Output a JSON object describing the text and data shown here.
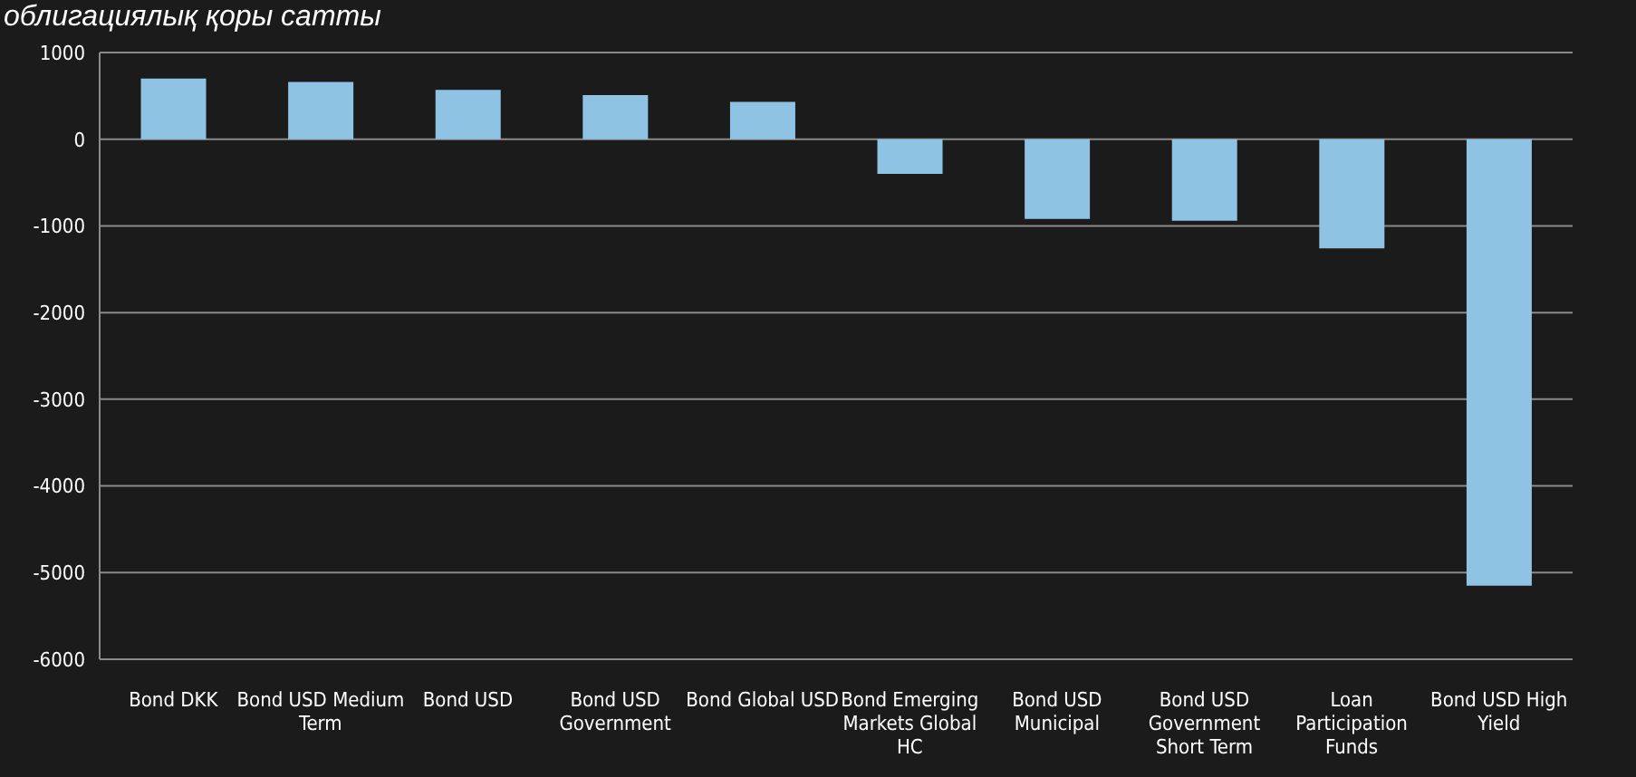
{
  "chart_data": {
    "type": "bar",
    "title": "облигациялық қоры сатты",
    "categories": [
      "Bond DKK",
      "Bond USD Medium Term",
      "Bond USD",
      "Bond USD Government",
      "Bond Global USD",
      "Bond Emerging Markets Global HC",
      "Bond USD Municipal",
      "Bond USD Government Short Term",
      "Loan Participation Funds",
      "Bond USD High Yield"
    ],
    "values": [
      700,
      660,
      570,
      510,
      430,
      -400,
      -920,
      -940,
      -1260,
      -5150
    ],
    "color": "#8ec3e3",
    "ylim": [
      -6000,
      1000
    ],
    "yticks": [
      -6000,
      -5000,
      -4000,
      -3000,
      -2000,
      -1000,
      0,
      1000
    ],
    "grid": "y"
  }
}
